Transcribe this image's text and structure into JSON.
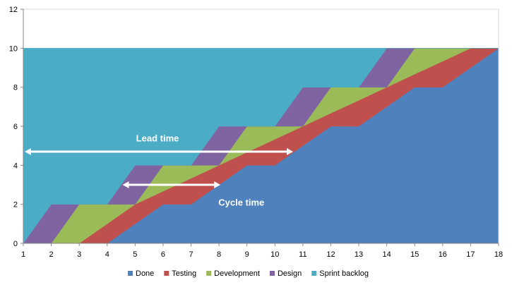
{
  "chart_data": {
    "type": "area",
    "stacked": true,
    "title": "",
    "xlabel": "",
    "ylabel": "",
    "x": [
      1,
      2,
      3,
      4,
      5,
      6,
      7,
      8,
      9,
      10,
      11,
      12,
      13,
      14,
      15,
      16,
      17,
      18
    ],
    "xlim": [
      1,
      18
    ],
    "ylim": [
      0,
      12
    ],
    "yticks": [
      0,
      2,
      4,
      6,
      8,
      10,
      12
    ],
    "grid": false,
    "legend_position": "bottom",
    "series": [
      {
        "name": "Done",
        "color": "#4F81BD",
        "values": [
          0,
          0,
          0,
          0,
          1,
          2,
          2,
          3,
          4,
          4,
          5,
          6,
          6,
          7,
          8,
          8,
          9,
          10
        ]
      },
      {
        "name": "Testing",
        "color": "#C0504D",
        "values": [
          0,
          0,
          0,
          1,
          1,
          0.67,
          1.33,
          1,
          0.67,
          1.33,
          1,
          0.67,
          1.33,
          1,
          0.67,
          1.33,
          1,
          0
        ]
      },
      {
        "name": "Development",
        "color": "#9BBB59",
        "values": [
          0,
          0,
          2,
          1,
          0,
          1.33,
          0.67,
          0,
          1.33,
          0.67,
          0,
          1.33,
          0.67,
          0,
          1.33,
          0.67,
          0,
          0
        ]
      },
      {
        "name": "Design",
        "color": "#8064A2",
        "values": [
          0,
          2,
          0,
          0,
          2,
          0,
          0,
          2,
          0,
          0,
          2,
          0,
          0,
          2,
          0,
          0,
          0,
          0
        ]
      },
      {
        "name": "Sprint backlog",
        "color": "#4BACC6",
        "values": [
          10,
          8,
          8,
          8,
          6,
          6,
          6,
          4,
          4,
          4,
          2,
          2,
          2,
          0,
          0,
          0,
          0,
          0
        ]
      }
    ],
    "annotations": [
      {
        "text": "Lead time"
      },
      {
        "text": "Cycle time"
      }
    ]
  }
}
